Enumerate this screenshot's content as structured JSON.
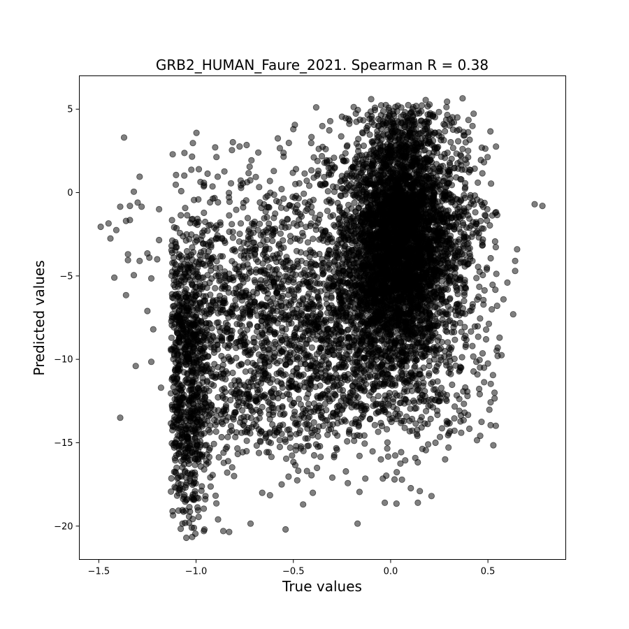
{
  "chart_data": {
    "type": "scatter",
    "title": "GRB2_HUMAN_Faure_2021. Spearman R = 0.38",
    "xlabel": "True values",
    "ylabel": "Predicted values",
    "xlim": [
      -1.6,
      0.9
    ],
    "ylim": [
      -22.0,
      7.0
    ],
    "xticks": [
      -1.5,
      -1.0,
      -0.5,
      0.0,
      0.5
    ],
    "xtick_labels": [
      "−1.5",
      "−1.0",
      "−0.5",
      "0.0",
      "0.5"
    ],
    "yticks": [
      5,
      0,
      -5,
      -10,
      -15,
      -20
    ],
    "ytick_labels": [
      "5",
      "0",
      "−5",
      "−10",
      "−15",
      "−20"
    ],
    "grid": false,
    "marker_color": "#000000",
    "marker_alpha": 0.5,
    "points": [
      [
        -1.49,
        -2.05
      ],
      [
        -1.45,
        -1.85
      ],
      [
        -1.44,
        -2.75
      ],
      [
        -1.42,
        -5.1
      ],
      [
        -1.41,
        -2.25
      ],
      [
        -1.39,
        -13.5
      ],
      [
        -1.39,
        -0.85
      ],
      [
        -1.37,
        3.3
      ],
      [
        -1.36,
        -1.7
      ],
      [
        -1.36,
        -6.15
      ],
      [
        -1.35,
        -4.05
      ],
      [
        -1.35,
        -3.7
      ],
      [
        -1.34,
        -1.65
      ],
      [
        -1.34,
        -0.8
      ],
      [
        -1.32,
        -4.95
      ],
      [
        -1.32,
        0.05
      ],
      [
        -1.31,
        -10.4
      ],
      [
        -1.3,
        -0.6
      ],
      [
        -1.29,
        0.95
      ],
      [
        -1.29,
        -4.1
      ],
      [
        -1.28,
        -0.85
      ],
      [
        -1.25,
        -7.1
      ],
      [
        -1.25,
        -3.65
      ],
      [
        -1.24,
        -3.9
      ],
      [
        -1.23,
        -5.15
      ],
      [
        -1.23,
        -10.15
      ],
      [
        -1.22,
        -8.2
      ],
      [
        -1.2,
        -4.0
      ],
      [
        -1.19,
        -1.0
      ],
      [
        -1.19,
        -2.85
      ],
      [
        -1.18,
        -11.7
      ],
      [
        -0.74,
        2.85
      ],
      [
        -0.68,
        2.4
      ],
      [
        -0.58,
        3.25
      ],
      [
        -0.55,
        2.15
      ],
      [
        -0.5,
        3.8
      ],
      [
        -0.25,
        4.55
      ],
      [
        -0.1,
        5.6
      ],
      [
        0.18,
        5.55
      ],
      [
        0.29,
        5.45
      ],
      [
        0.37,
        5.65
      ],
      [
        0.4,
        4.35
      ],
      [
        0.74,
        -0.7
      ],
      [
        0.78,
        -0.8
      ],
      [
        0.65,
        -3.4
      ],
      [
        0.64,
        -4.7
      ],
      [
        0.64,
        -4.1
      ],
      [
        0.63,
        -7.3
      ],
      [
        0.6,
        -5.4
      ],
      [
        0.58,
        -6.4
      ],
      [
        0.56,
        -8.7
      ],
      [
        0.55,
        -9.3
      ],
      [
        0.55,
        -9.8
      ],
      [
        0.57,
        -9.75
      ],
      [
        0.52,
        -7.0
      ],
      [
        0.48,
        -10.5
      ],
      [
        0.5,
        -10.25
      ],
      [
        0.45,
        -8.65
      ],
      [
        0.42,
        -9.2
      ],
      [
        0.38,
        -13.2
      ],
      [
        0.28,
        -16.0
      ],
      [
        0.21,
        -18.2
      ],
      [
        0.15,
        -17.9
      ],
      [
        0.14,
        -18.6
      ],
      [
        0.05,
        -16.25
      ],
      [
        0.03,
        -18.65
      ],
      [
        0.02,
        -17.2
      ],
      [
        -0.03,
        -18.6
      ],
      [
        -0.04,
        -17.15
      ],
      [
        -0.05,
        -16.0
      ],
      [
        -0.13,
        -17.15
      ],
      [
        -0.17,
        -19.85
      ],
      [
        -0.16,
        -17.95
      ],
      [
        -0.29,
        -15.75
      ],
      [
        -0.36,
        -15.85
      ],
      [
        -0.43,
        -16.7
      ],
      [
        -0.45,
        -18.7
      ],
      [
        -0.4,
        -18.0
      ],
      [
        -0.54,
        -20.2
      ],
      [
        -0.56,
        -17.5
      ],
      [
        -0.62,
        -18.15
      ],
      [
        -0.66,
        -18.0
      ],
      [
        -0.72,
        -19.85
      ],
      [
        -0.83,
        -20.35
      ],
      [
        -0.86,
        -20.3
      ],
      [
        -0.96,
        -20.3
      ],
      [
        -0.99,
        -19.05
      ],
      [
        -1.05,
        -20.7
      ],
      [
        -1.02,
        -20.65
      ],
      [
        -1.07,
        -19.85
      ],
      [
        -1.11,
        -17.65
      ],
      [
        -1.1,
        -16.5
      ],
      [
        -1.12,
        -14.0
      ],
      [
        -1.1,
        -12.0
      ]
    ],
    "clusters": [
      {
        "cx": 0.05,
        "cy": -2.5,
        "sx": 0.12,
        "sy": 3.2,
        "n": 2600
      },
      {
        "cx": 0.04,
        "cy": -4.0,
        "sx": 0.19,
        "sy": 4.0,
        "n": 1500
      },
      {
        "cx": -0.02,
        "cy": -7.0,
        "sx": 0.22,
        "sy": 3.0,
        "n": 500
      },
      {
        "cx": -0.2,
        "cy": -9.0,
        "sx": 0.18,
        "sy": 3.0,
        "n": 300
      },
      {
        "cx": -0.45,
        "cy": -8.0,
        "sx": 0.25,
        "sy": 3.5,
        "n": 650
      },
      {
        "cx": -0.75,
        "cy": -8.0,
        "sx": 0.2,
        "sy": 3.8,
        "n": 650
      },
      {
        "cx": -1.03,
        "cy": -9.5,
        "sx": 0.06,
        "sy": 4.2,
        "n": 650
      },
      {
        "cx": -1.03,
        "cy": -15.5,
        "sx": 0.06,
        "sy": 2.0,
        "n": 160
      },
      {
        "cx": -0.35,
        "cy": -13.0,
        "sx": 0.3,
        "sy": 1.5,
        "n": 240
      },
      {
        "cx": 0.3,
        "cy": -12.5,
        "sx": 0.12,
        "sy": 1.5,
        "n": 80
      },
      {
        "cx": 0.35,
        "cy": -2.0,
        "sx": 0.1,
        "sy": 3.0,
        "n": 150
      },
      {
        "cx": -0.6,
        "cy": -2.0,
        "sx": 0.25,
        "sy": 2.0,
        "n": 160
      },
      {
        "cx": -0.25,
        "cy": 1.5,
        "sx": 0.15,
        "sy": 1.2,
        "n": 60
      },
      {
        "cx": 0.15,
        "cy": 3.3,
        "sx": 0.12,
        "sy": 1.0,
        "n": 120
      }
    ]
  }
}
